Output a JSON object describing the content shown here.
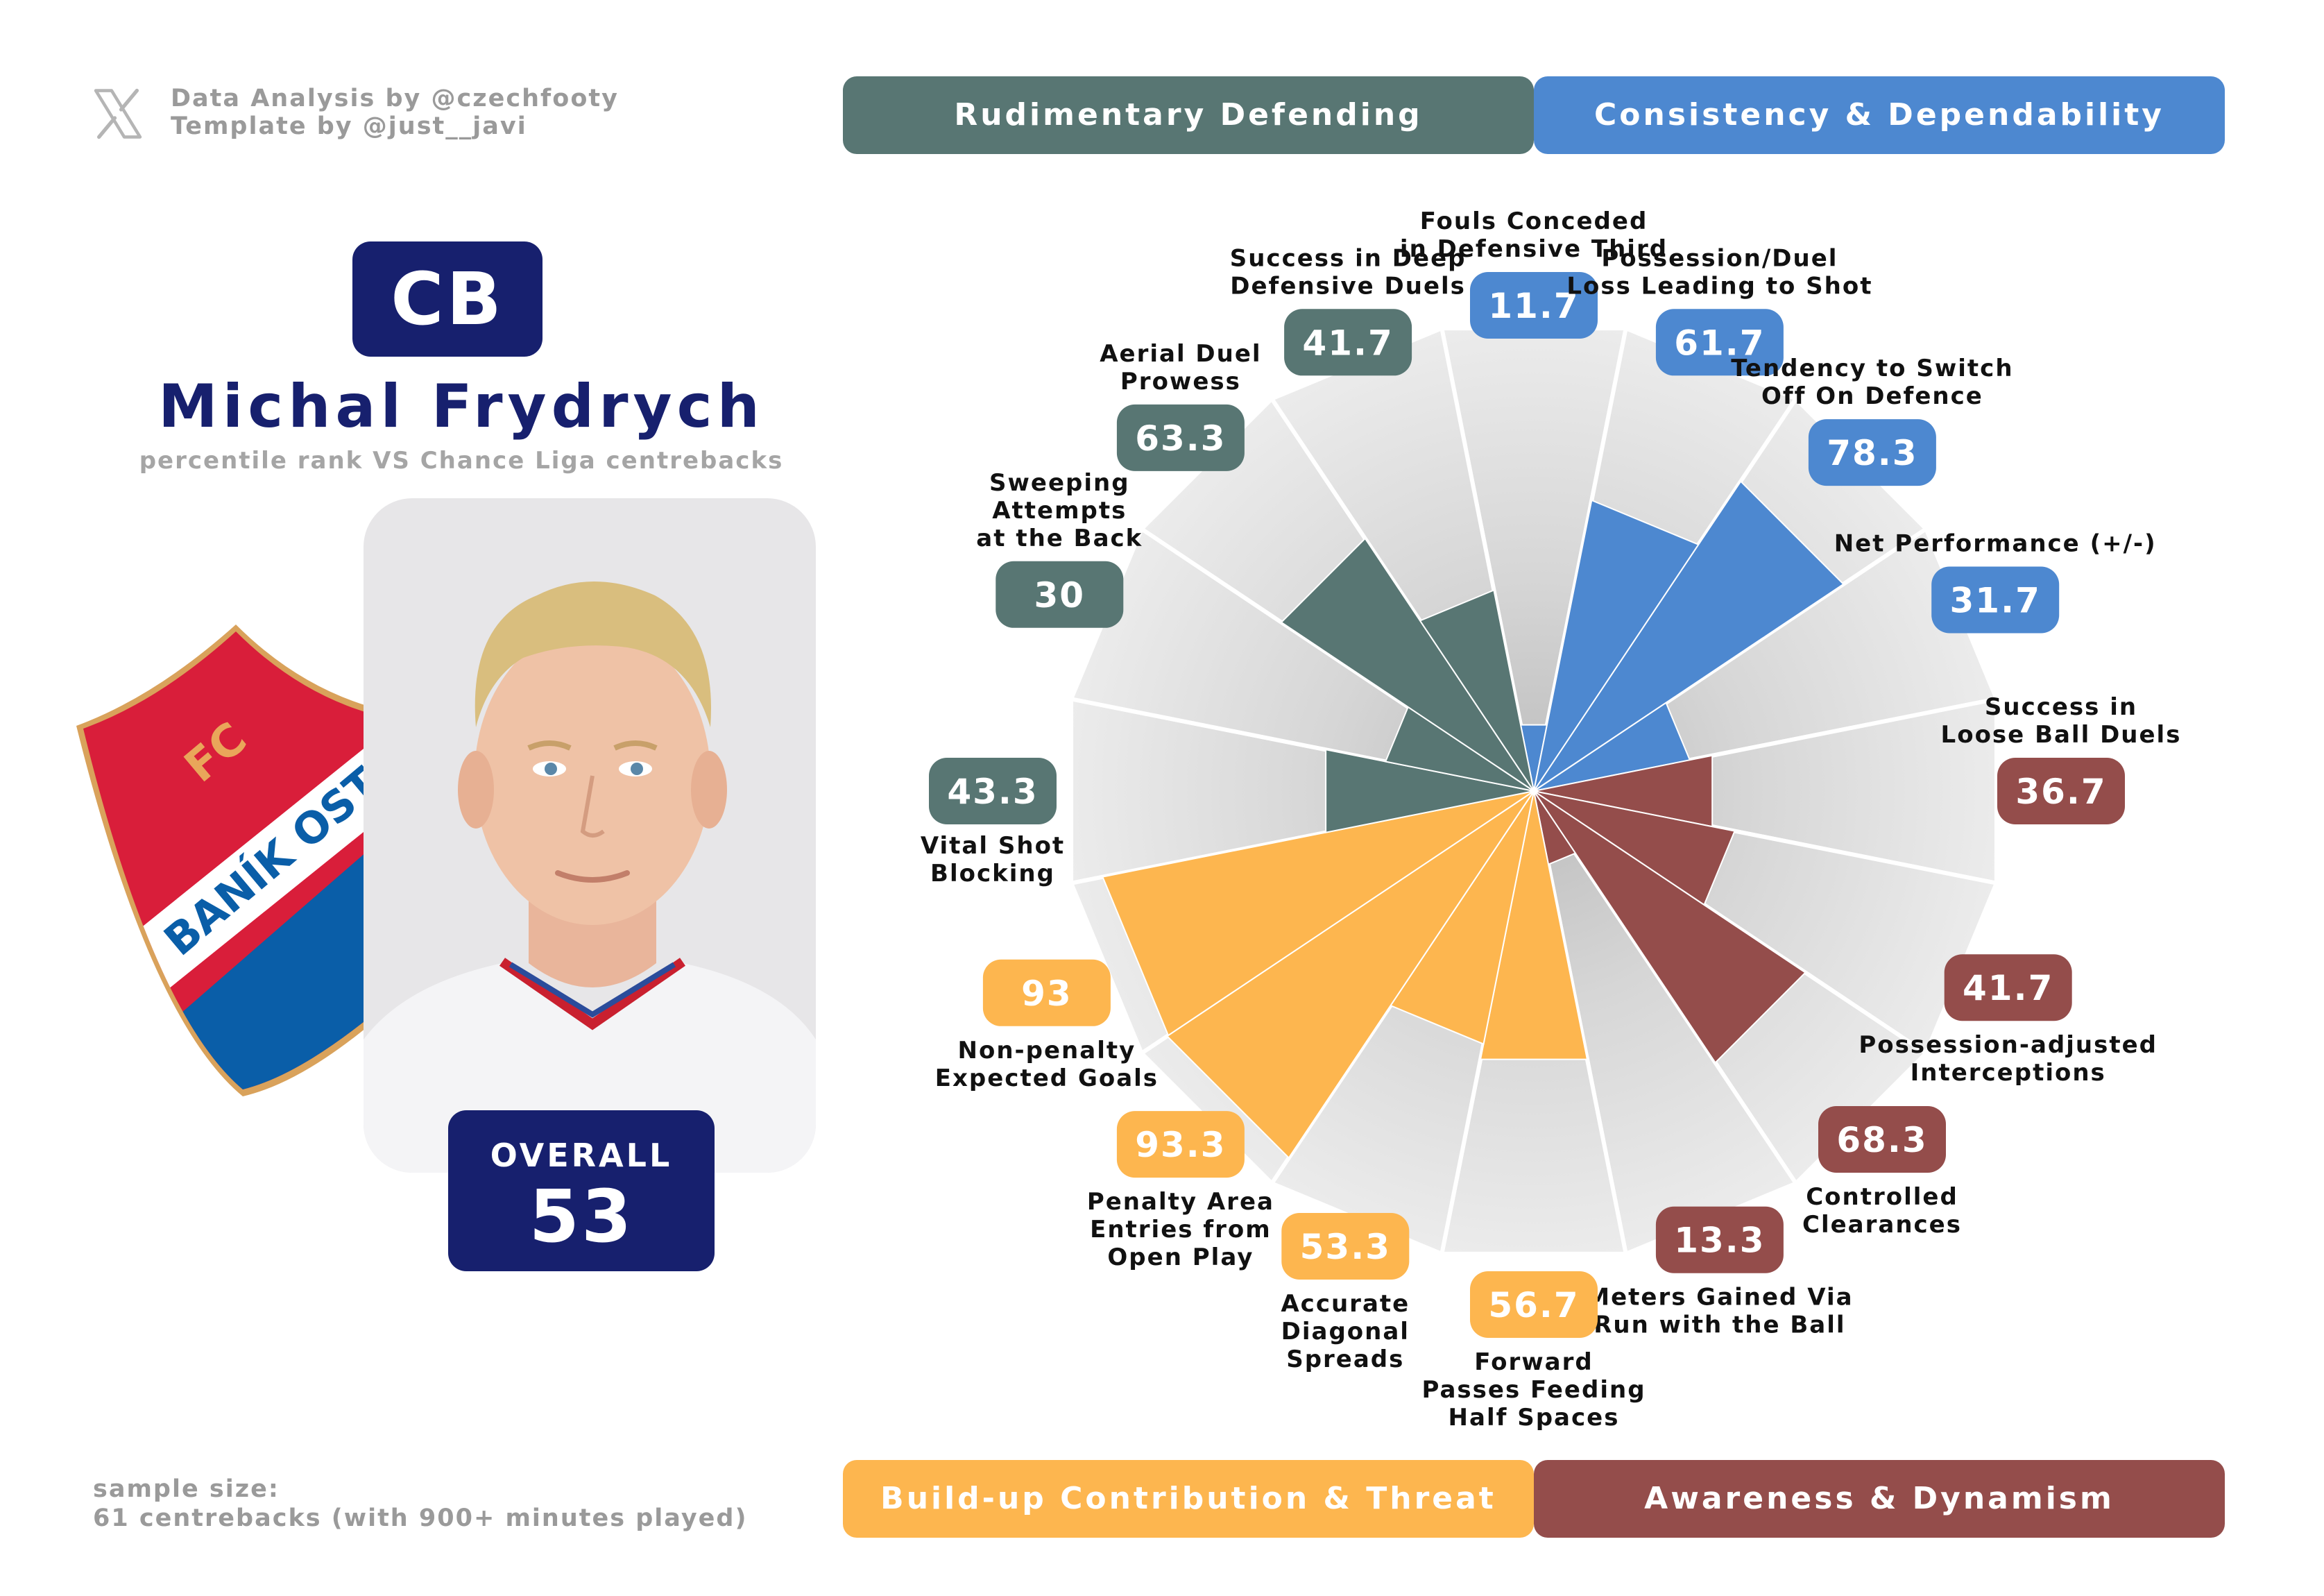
{
  "credits": {
    "line1": "Data Analysis by @czechfooty",
    "line2": "Template by @just__javi",
    "icon": "x-logo-icon"
  },
  "player": {
    "position": "CB",
    "name": "Michal Frydrych",
    "subtitle": "percentile rank VS Chance Liga centrebacks",
    "overall_label": "OVERALL",
    "overall_value": "53"
  },
  "crest": {
    "text_top": "FC",
    "text_band": "BANÍK OSTRAVA",
    "colors": {
      "red": "#d91e3a",
      "blue": "#0a5ea8",
      "gold": "#d9a25b"
    }
  },
  "sample": {
    "line1": "sample size:",
    "line2": "61 centrebacks (with 900+ minutes played)"
  },
  "categories": {
    "top_left": "Rudimentary Defending",
    "top_right": "Consistency & Dependability",
    "bottom_left": "Build-up Contribution & Threat",
    "bottom_right": "Awareness & Dynamism"
  },
  "colors": {
    "defending": "#587673",
    "consistency": "#4d88d0",
    "buildup": "#fdb64f",
    "awareness": "#944d4b",
    "navy": "#17206e",
    "background_segment": "#e6e6e6"
  },
  "chart_data": {
    "type": "radar",
    "rmax": 100,
    "metrics": [
      {
        "label": [
          "Fouls Conceded",
          "in Defensive Third"
        ],
        "value": 11.7,
        "display": "11.7",
        "group": "consistency"
      },
      {
        "label": [
          "Possession/Duel",
          "Loss Leading to Shot"
        ],
        "value": 61.7,
        "display": "61.7",
        "group": "consistency"
      },
      {
        "label": [
          "Tendency to Switch",
          "Off On Defence"
        ],
        "value": 78.3,
        "display": "78.3",
        "group": "consistency"
      },
      {
        "label": [
          "Net Performance (+/-)"
        ],
        "value": 31.7,
        "display": "31.7",
        "group": "consistency"
      },
      {
        "label": [
          "Success in",
          "Loose Ball Duels"
        ],
        "value": 36.7,
        "display": "36.7",
        "group": "awareness"
      },
      {
        "label": [
          "Possession-adjusted",
          "Interceptions"
        ],
        "value": 41.7,
        "display": "41.7",
        "group": "awareness"
      },
      {
        "label": [
          "Controlled",
          "Clearances"
        ],
        "value": 68.3,
        "display": "68.3",
        "group": "awareness"
      },
      {
        "label": [
          "Meters Gained Via",
          "Run with the Ball"
        ],
        "value": 13.3,
        "display": "13.3",
        "group": "awareness"
      },
      {
        "label": [
          "Forward",
          "Passes Feeding",
          "Half Spaces"
        ],
        "value": 56.7,
        "display": "56.7",
        "group": "buildup"
      },
      {
        "label": [
          "Accurate",
          "Diagonal",
          "Spreads"
        ],
        "value": 53.3,
        "display": "53.3",
        "group": "buildup"
      },
      {
        "label": [
          "Penalty Area",
          "Entries from",
          "Open Play"
        ],
        "value": 93.3,
        "display": "93.3",
        "group": "buildup"
      },
      {
        "label": [
          "Non-penalty",
          "Expected Goals"
        ],
        "value": 93,
        "display": "93",
        "group": "buildup"
      },
      {
        "label": [
          "Vital Shot",
          "Blocking"
        ],
        "value": 43.3,
        "display": "43.3",
        "group": "defending"
      },
      {
        "label": [
          "Sweeping",
          "Attempts",
          "at the Back"
        ],
        "value": 30,
        "display": "30",
        "group": "defending"
      },
      {
        "label": [
          "Aerial Duel",
          "Prowess"
        ],
        "value": 63.3,
        "display": "63.3",
        "group": "defending"
      },
      {
        "label": [
          "Success in Deep",
          "Defensive Duels"
        ],
        "value": 41.7,
        "display": "41.7",
        "group": "defending"
      }
    ]
  }
}
